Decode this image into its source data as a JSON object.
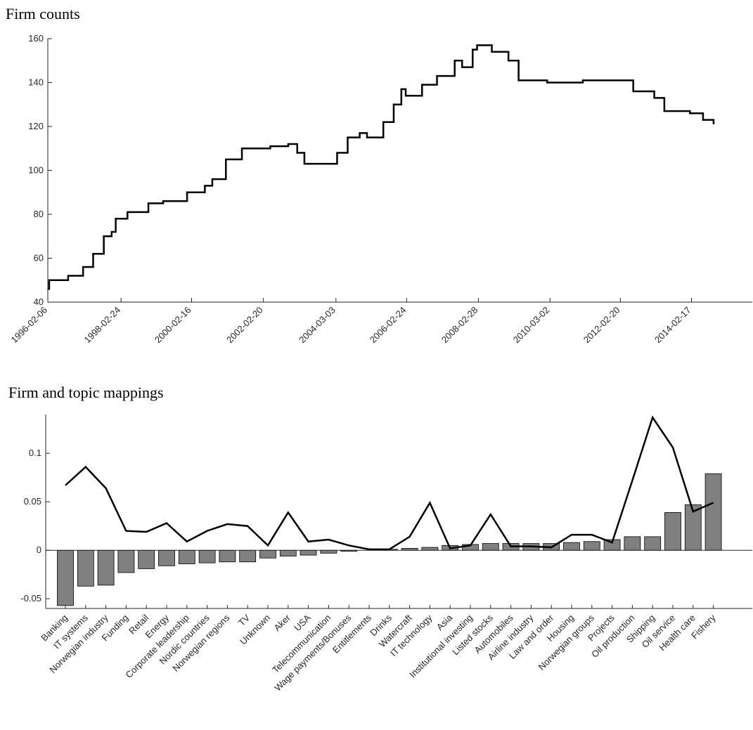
{
  "chart_data": [
    {
      "type": "line",
      "title": "Firm counts",
      "x": [
        "1996-02-06",
        "1996-02-20",
        "1996-09-01",
        "1997-02-01",
        "1997-05-15",
        "1997-09-01",
        "1997-11-20",
        "1998-01-01",
        "1998-05-01",
        "1998-12-01",
        "1999-05-01",
        "1999-11-01",
        "2000-01-01",
        "2000-07-01",
        "2000-09-15",
        "2001-02-01",
        "2001-07-15",
        "2002-05-01",
        "2002-11-01",
        "2003-02-01",
        "2003-04-15",
        "2003-12-01",
        "2004-03-15",
        "2004-07-01",
        "2004-11-01",
        "2005-01-15",
        "2005-07-01",
        "2005-10-15",
        "2006-01-01",
        "2006-02-15",
        "2006-08-01",
        "2007-01-01",
        "2007-07-01",
        "2007-09-15",
        "2008-01-01",
        "2008-02-15",
        "2008-07-15",
        "2009-01-01",
        "2009-04-15",
        "2010-02-01",
        "2011-02-01",
        "2012-02-01",
        "2012-07-01",
        "2013-02-01",
        "2013-05-15",
        "2014-02-01",
        "2014-06-15",
        "2014-10-01"
      ],
      "values": [
        46,
        50,
        52,
        56,
        62,
        70,
        72,
        78,
        81,
        85,
        86,
        86,
        90,
        93,
        96,
        105,
        110,
        111,
        112,
        108,
        103,
        103,
        108,
        115,
        117,
        115,
        122,
        130,
        137,
        134,
        139,
        143,
        150,
        147,
        155,
        157,
        154,
        150,
        141,
        140,
        141,
        141,
        136,
        133,
        127,
        126,
        123,
        121
      ],
      "color": "#000000",
      "xlim": [
        "1996-02-06",
        "2015-11-01"
      ],
      "xticks": [
        "1996-02-06",
        "1998-02-24",
        "2000-02-16",
        "2002-02-20",
        "2004-03-03",
        "2006-02-24",
        "2008-02-28",
        "2010-03-02",
        "2012-02-20",
        "2014-02-17"
      ],
      "ylim": [
        40,
        160
      ],
      "yticks": [
        40,
        60,
        80,
        100,
        120,
        140,
        160
      ]
    },
    {
      "type": "bar",
      "title": "Firm and topic mappings",
      "categories": [
        "Banking",
        "IT systems",
        "Norwegian industry",
        "Funding",
        "Retail",
        "Energy",
        "Corporate leadership",
        "Nordic countries",
        "Norwegian regions",
        "TV",
        "Unknown",
        "Aker",
        "USA",
        "Telecommunication",
        "Wage payments/Bonuses",
        "Entitlements",
        "Drinks",
        "Watercraft",
        "IT technology",
        "Asia",
        "Institutional investing",
        "Listed stocks",
        "Automobiles",
        "Airline industry",
        "Law and order",
        "Housing",
        "Norwegian groups",
        "Projects",
        "Oil production",
        "Shipping",
        "Oil service",
        "Health care",
        "Fishery"
      ],
      "series": [
        {
          "type": "bar",
          "color": "#808080",
          "values": [
            -0.057,
            -0.037,
            -0.036,
            -0.023,
            -0.019,
            -0.016,
            -0.014,
            -0.013,
            -0.012,
            -0.012,
            -0.008,
            -0.006,
            -0.005,
            -0.003,
            -0.001,
            0,
            0.001,
            0.002,
            0.003,
            0.005,
            0.006,
            0.007,
            0.007,
            0.007,
            0.007,
            0.008,
            0.009,
            0.011,
            0.014,
            0.014,
            0.039,
            0.047,
            0.079
          ]
        },
        {
          "type": "line",
          "color": "#000000",
          "values": [
            0.067,
            0.086,
            0.064,
            0.02,
            0.019,
            0.028,
            0.009,
            0.02,
            0.027,
            0.025,
            0.005,
            0.039,
            0.009,
            0.011,
            0.005,
            0.001,
            0.001,
            0.014,
            0.049,
            0.002,
            0.005,
            0.037,
            0.004,
            0.004,
            0.003,
            0.016,
            0.016,
            0.008,
            0.072,
            0.137,
            0.106,
            0.04,
            0.049
          ]
        }
      ],
      "ylim": [
        -0.06,
        0.14
      ],
      "yticks": [
        -0.05,
        0,
        0.05,
        0.1
      ]
    }
  ]
}
